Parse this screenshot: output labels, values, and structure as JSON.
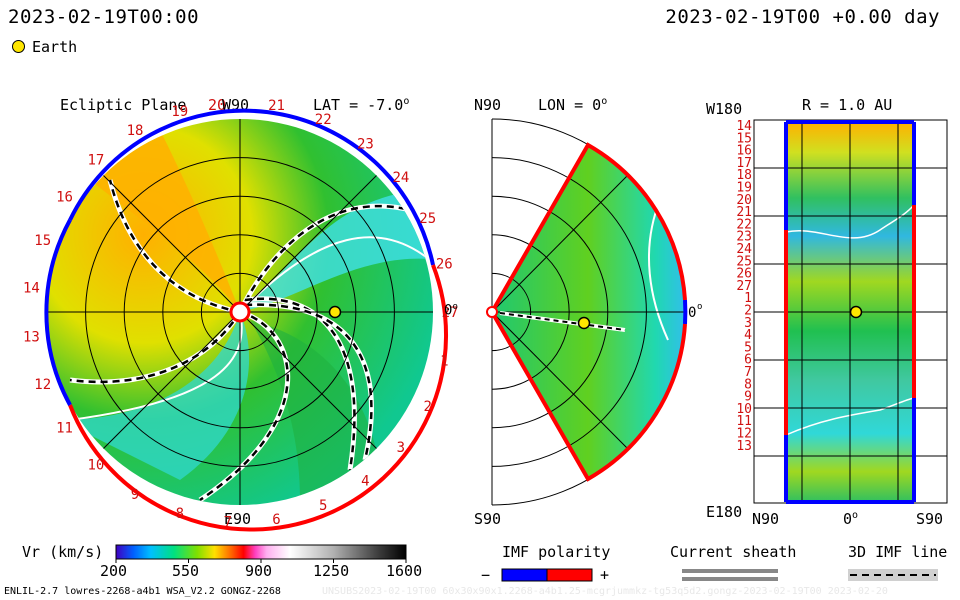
{
  "header": {
    "timestamp_left": "2023-02-19T00:00",
    "timestamp_right": "2023-02-19T00 +0.00 day"
  },
  "legend": {
    "earth_label": "Earth",
    "earth_color": "#ffe600"
  },
  "panels": {
    "ecliptic": {
      "title": "Ecliptic Plane",
      "lat_label": "LAT = -7.0",
      "lat_deg": "o",
      "top_label": "W90",
      "bottom_label": "E90",
      "right_label": "0",
      "right_deg": "o",
      "rotation_labels": [
        "1",
        "2",
        "3",
        "4",
        "5",
        "6",
        "7",
        "8",
        "9",
        "10",
        "11",
        "12",
        "13",
        "14",
        "15",
        "16",
        "17",
        "18",
        "19",
        "20",
        "21",
        "22",
        "23",
        "24",
        "25",
        "26",
        "27"
      ]
    },
    "meridional": {
      "title": "LON = 0",
      "title_deg": "o",
      "top_label": "N90",
      "bottom_label": "S90",
      "right_label": "0",
      "right_deg": "o"
    },
    "radial": {
      "title": "R = 1.0 AU",
      "top_left_label": "W180",
      "bottom_left_label": "E180",
      "x_labels": [
        "N90",
        "0",
        "S90"
      ],
      "x_deg": "o",
      "y_labels": [
        "14",
        "15",
        "16",
        "17",
        "18",
        "19",
        "20",
        "21",
        "22",
        "23",
        "24",
        "25",
        "26",
        "27",
        "1",
        "2",
        "3",
        "4",
        "5",
        "6",
        "7",
        "8",
        "9",
        "10",
        "11",
        "12",
        "13"
      ]
    }
  },
  "colorbar": {
    "label": "Vr (km/s)",
    "ticks": [
      "200",
      "550",
      "900",
      "1250",
      "1600"
    ],
    "min": 200,
    "max": 1600
  },
  "imf": {
    "title": "IMF polarity",
    "minus": "−",
    "plus": "+",
    "neg_color": "#0000ff",
    "pos_color": "#ff0000"
  },
  "sheath": {
    "title": "Current sheath"
  },
  "imf3d": {
    "title": "3D IMF line"
  },
  "footer": {
    "left": "ENLIL-2.7 lowres-2268-a4b1 WSA_V2.2 GONGZ-2268",
    "right": "UNSUBS2023-02-19T00 60x30x90x1.2268-a4b1.25-mcgrjummkz-tg53q5d2.gongz-2023-02-19T00  2023-02-20"
  },
  "chart_data": {
    "type": "heatmap",
    "quantity": "Vr (km/s)",
    "color_range": [
      200,
      1600
    ],
    "earth": {
      "longitude_deg": 0,
      "latitude_deg": -7.0,
      "radius_au": 1.0
    }
  }
}
